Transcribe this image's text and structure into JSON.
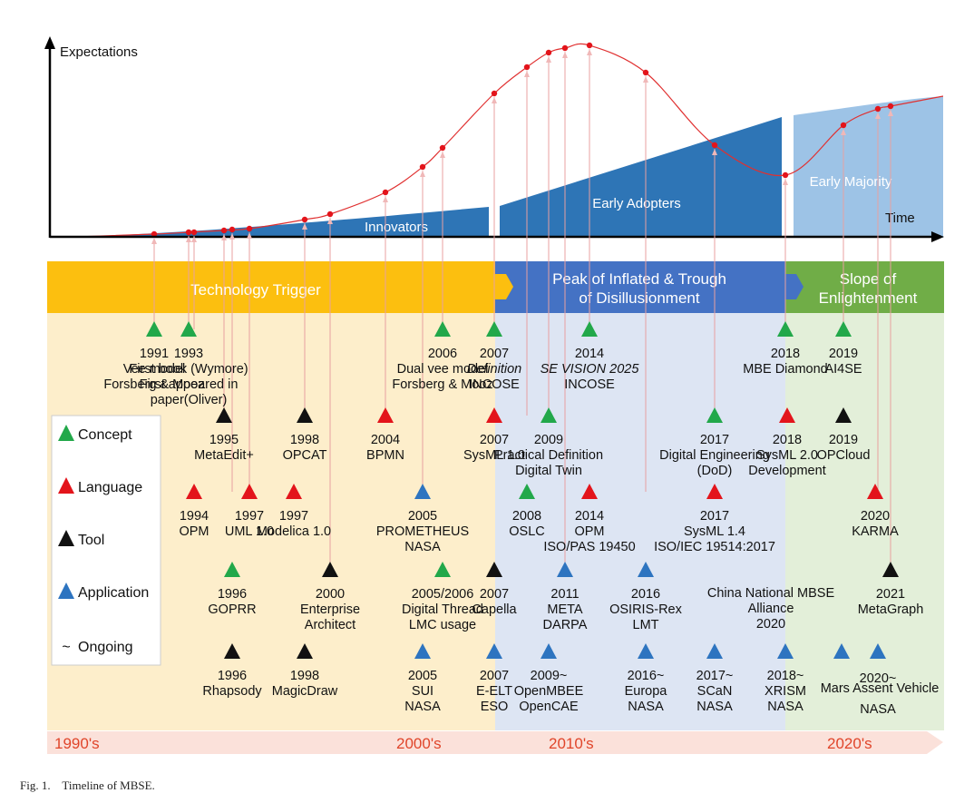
{
  "axes": {
    "y_title": "Expectations",
    "x_title": "Time"
  },
  "adoption_bands": [
    "Innovators",
    "Early Adopters",
    "Early Majority"
  ],
  "phases": [
    {
      "lines": [
        "Technology Trigger"
      ],
      "color": "#fcbf0f"
    },
    {
      "lines": [
        "Peak of Inflated & Trough",
        "of Disillusionment"
      ],
      "color": "#4472c4"
    },
    {
      "lines": [
        "Slope of",
        "Enlightenment"
      ],
      "color": "#70ad47"
    }
  ],
  "eras": [
    "1990's",
    "2000's",
    "2010's",
    "2020's"
  ],
  "legend": [
    {
      "label": "Concept",
      "type": "concept"
    },
    {
      "label": "Language",
      "type": "language"
    },
    {
      "label": "Tool",
      "type": "tool"
    },
    {
      "label": "Application",
      "type": "application"
    },
    {
      "label": "Ongoing",
      "type": "ongoing",
      "symbol": "~"
    }
  ],
  "type_colors": {
    "concept": "#22a84a",
    "language": "#e3141b",
    "tool": "#111111",
    "application": "#2d74c0"
  },
  "events": [
    {
      "type": "concept",
      "lines": [
        "1991",
        "Vee model",
        "Forsberg & Mooz"
      ]
    },
    {
      "type": "concept",
      "lines": [
        "1993",
        "First book (Wymore)",
        "First appeared in",
        "paper(Oliver)"
      ]
    },
    {
      "type": "concept",
      "lines": [
        "2006",
        "Dual vee model",
        "Forsberg & Mooz"
      ]
    },
    {
      "type": "concept",
      "lines": [
        "2007",
        "Definition",
        "INCOSE"
      ],
      "italic_line": 1
    },
    {
      "type": "concept",
      "lines": [
        "2014",
        "SE VISION 2025",
        "INCOSE"
      ],
      "italic_line": 1
    },
    {
      "type": "concept",
      "lines": [
        "2018",
        "MBE Diamond"
      ]
    },
    {
      "type": "concept",
      "lines": [
        "2019",
        "AI4SE"
      ]
    },
    {
      "type": "tool",
      "lines": [
        "1995",
        "MetaEdit+"
      ]
    },
    {
      "type": "tool",
      "lines": [
        "1998",
        "OPCAT"
      ]
    },
    {
      "type": "language",
      "lines": [
        "2004",
        "BPMN"
      ]
    },
    {
      "type": "language",
      "lines": [
        "2007",
        "SysML 1.0"
      ]
    },
    {
      "type": "concept",
      "lines": [
        "2009",
        "Practical Definition",
        "Digital Twin"
      ]
    },
    {
      "type": "concept",
      "lines": [
        "2017",
        "Digital Engineering",
        "(DoD)"
      ]
    },
    {
      "type": "language",
      "lines": [
        "2018",
        "SysML 2.0",
        "Development"
      ]
    },
    {
      "type": "tool",
      "lines": [
        "2019",
        "OPCloud"
      ]
    },
    {
      "type": "language",
      "lines": [
        "1994",
        "OPM"
      ]
    },
    {
      "type": "language",
      "lines": [
        "1997",
        "UML 1.0"
      ]
    },
    {
      "type": "language",
      "lines": [
        "1997",
        "Modelica 1.0"
      ]
    },
    {
      "type": "application",
      "lines": [
        "2005",
        "PROMETHEUS",
        "NASA"
      ]
    },
    {
      "type": "concept",
      "lines": [
        "2008",
        "OSLC"
      ]
    },
    {
      "type": "language",
      "lines": [
        "2014",
        "OPM",
        "ISO/PAS 19450"
      ]
    },
    {
      "type": "language",
      "lines": [
        "2017",
        "SysML 1.4",
        "ISO/IEC 19514:2017"
      ]
    },
    {
      "type": "language",
      "lines": [
        "2020",
        "KARMA"
      ]
    },
    {
      "type": "concept",
      "lines": [
        "1996",
        "GOPRR"
      ]
    },
    {
      "type": "tool",
      "lines": [
        "2000",
        "Enterprise",
        "Architect"
      ]
    },
    {
      "type": "concept",
      "lines": [
        "2005/2006",
        "Digital Thread",
        "LMC usage"
      ]
    },
    {
      "type": "tool",
      "lines": [
        "2007",
        "Capella"
      ]
    },
    {
      "type": "application",
      "lines": [
        "2011",
        "META",
        "DARPA"
      ]
    },
    {
      "type": "application",
      "lines": [
        "2016",
        "OSIRIS-Rex",
        "LMT"
      ]
    },
    {
      "type": "none",
      "lines": [
        "China National MBSE",
        "Alliance",
        "2020"
      ]
    },
    {
      "type": "tool",
      "lines": [
        "2021",
        "MetaGraph"
      ]
    },
    {
      "type": "tool",
      "lines": [
        "1996",
        "Rhapsody"
      ]
    },
    {
      "type": "tool",
      "lines": [
        "1998",
        "MagicDraw"
      ]
    },
    {
      "type": "application",
      "lines": [
        "2005",
        "SUI",
        "NASA"
      ]
    },
    {
      "type": "application",
      "lines": [
        "2007",
        "E-ELT",
        "ESO"
      ]
    },
    {
      "type": "application",
      "lines": [
        "2009~",
        "OpenMBEE",
        "OpenCAE"
      ]
    },
    {
      "type": "application",
      "lines": [
        "2016~",
        "Europa",
        "NASA"
      ]
    },
    {
      "type": "application",
      "lines": [
        "2017~",
        "SCaN",
        "NASA"
      ]
    },
    {
      "type": "application",
      "lines": [
        "2018~",
        "XRISM",
        "NASA"
      ]
    },
    {
      "type": "application",
      "lines": [
        "Mars Assent Vehicle"
      ]
    },
    {
      "type": "application",
      "lines": [
        "2020~",
        "NASA"
      ]
    }
  ],
  "caption": "Fig. 1.    Timeline of MBSE."
}
